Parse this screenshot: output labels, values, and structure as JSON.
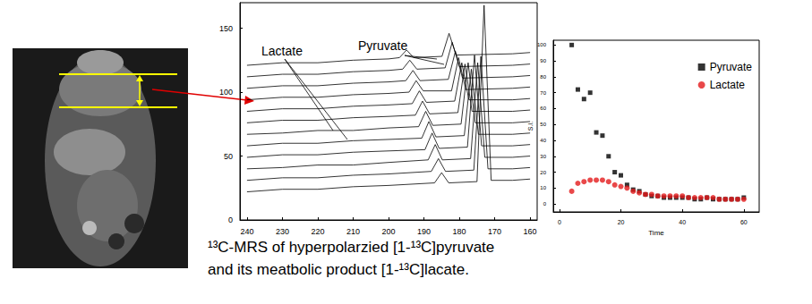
{
  "chart_data": [
    {
      "type": "line",
      "annotations": [
        "Lactate",
        "Pyruvate"
      ],
      "xlim": [
        242,
        158
      ],
      "xticks": [
        240,
        230,
        220,
        210,
        200,
        190,
        180,
        170,
        160
      ],
      "ylim": [
        0,
        170
      ],
      "yticks": [
        0,
        50,
        100,
        150
      ],
      "series": [
        {
          "color": "#000000",
          "x": [
            240,
            230,
            220,
            210,
            200,
            187,
            185,
            183,
            175,
            173,
            171,
            165,
            160
          ],
          "values": [
            22,
            24,
            24,
            26,
            27,
            29,
            37,
            29,
            30,
            168,
            31,
            31,
            32
          ]
        },
        {
          "color": "#000000",
          "x": [
            240,
            230,
            220,
            210,
            200,
            187.9,
            185.9,
            183.9,
            175.9,
            173.9,
            171.9,
            165,
            160
          ],
          "values": [
            31,
            33,
            33,
            35,
            36,
            38,
            48,
            38,
            39,
            128,
            40,
            40,
            41
          ]
        },
        {
          "color": "#000000",
          "x": [
            240,
            230,
            220,
            210,
            200,
            188.8,
            186.8,
            184.8,
            176.8,
            174.8,
            172.8,
            165,
            160
          ],
          "values": [
            40,
            41,
            43,
            43,
            45,
            47,
            59,
            47,
            48,
            123,
            49,
            49,
            50
          ]
        },
        {
          "color": "#000000",
          "x": [
            240,
            230,
            220,
            210,
            200,
            189.7,
            187.7,
            185.7,
            177.7,
            175.7,
            173.7,
            165,
            160
          ],
          "values": [
            49,
            51,
            51,
            53,
            54,
            55,
            68,
            56,
            57,
            129,
            58,
            58,
            59
          ]
        },
        {
          "color": "#000000",
          "x": [
            240,
            230,
            220,
            210,
            200,
            190.6,
            188.6,
            186.6,
            178.6,
            176.6,
            174.6,
            165,
            160
          ],
          "values": [
            58,
            60,
            60,
            62,
            63,
            64,
            77,
            65,
            66,
            118,
            67,
            67,
            68
          ]
        },
        {
          "color": "#000000",
          "x": [
            240,
            230,
            220,
            210,
            200,
            191.5,
            189.5,
            187.5,
            179.5,
            177.5,
            175.5,
            165,
            160
          ],
          "values": [
            67,
            68,
            70,
            70,
            72,
            73,
            85,
            74,
            75,
            123,
            76,
            76,
            77
          ]
        },
        {
          "color": "#000000",
          "x": [
            240,
            230,
            220,
            210,
            200,
            192.4,
            190.4,
            188.4,
            180.4,
            178.4,
            176.4,
            165,
            160
          ],
          "values": [
            76,
            78,
            78,
            80,
            81,
            82,
            93,
            83,
            84,
            122,
            85,
            85,
            86
          ]
        },
        {
          "color": "#000000",
          "x": [
            240,
            230,
            220,
            210,
            200,
            193.3,
            191.3,
            189.3,
            181.3,
            179.3,
            177.3,
            165,
            160
          ],
          "values": [
            85,
            87,
            87,
            89,
            90,
            91,
            101,
            92,
            93,
            123,
            94,
            94,
            95
          ]
        },
        {
          "color": "#000000",
          "x": [
            240,
            230,
            220,
            210,
            200,
            194.2,
            192.2,
            190.2,
            182.2,
            180.2,
            178.2,
            165,
            160
          ],
          "values": [
            94,
            96,
            96,
            98,
            99,
            100,
            109,
            101,
            101,
            127,
            102,
            103,
            104
          ]
        },
        {
          "color": "#000000",
          "x": [
            240,
            230,
            220,
            210,
            200,
            195.1,
            193.1,
            191.1,
            183.1,
            181.1,
            179.1,
            165,
            160
          ],
          "values": [
            103,
            105,
            105,
            107,
            108,
            109,
            117,
            109,
            110,
            132,
            111,
            112,
            113
          ]
        },
        {
          "color": "#000000",
          "x": [
            240,
            230,
            220,
            210,
            200,
            196,
            194,
            192,
            184,
            182,
            180,
            165,
            160
          ],
          "values": [
            112,
            114,
            114,
            116,
            117,
            118,
            125,
            118,
            119,
            139,
            120,
            121,
            122
          ]
        },
        {
          "color": "#000000",
          "x": [
            240,
            230,
            220,
            210,
            200,
            196.9,
            194.9,
            192.9,
            184.9,
            182.9,
            180.9,
            165,
            160
          ],
          "values": [
            121,
            123,
            123,
            125,
            126,
            127,
            133,
            127,
            128,
            146,
            129,
            130,
            131
          ]
        }
      ]
    },
    {
      "type": "scatter",
      "xlabel": "Time",
      "ylabel": "S.I.",
      "xlim": [
        -2,
        65
      ],
      "xticks": [
        0,
        20,
        40,
        60
      ],
      "ylim": [
        -5,
        103
      ],
      "yticks": [
        0,
        10,
        20,
        30,
        40,
        50,
        60,
        70,
        80,
        90,
        100
      ],
      "legend": "upper right",
      "x": [
        4,
        6,
        8,
        10,
        12,
        14,
        16,
        18,
        20,
        22,
        24,
        26,
        28,
        30,
        32,
        34,
        36,
        38,
        40,
        42,
        44,
        46,
        48,
        50,
        52,
        54,
        56,
        58,
        60
      ],
      "series": [
        {
          "name": "Pyruvate",
          "color": "#000000",
          "marker": "square",
          "values": [
            100,
            72,
            66,
            70,
            45,
            43,
            30,
            20,
            18,
            12,
            9,
            8,
            6,
            5,
            5,
            4,
            4,
            4,
            4,
            4,
            3,
            3,
            4,
            3,
            3,
            3,
            3,
            3,
            4
          ]
        },
        {
          "name": "Lactate",
          "color": "#e41a1c",
          "marker": "circle",
          "values": [
            8,
            13,
            14,
            15,
            15,
            15,
            14,
            12,
            11,
            10,
            8,
            7,
            6,
            6,
            5,
            5,
            5,
            5,
            5,
            4,
            4,
            4,
            4,
            4,
            3,
            3,
            3,
            3,
            3
          ]
        }
      ]
    }
  ],
  "caption": "¹³C-MRS of hyperpolarzied [1-¹³C]pyruvate\nand its meatbolic product [1-¹³C]lacate."
}
